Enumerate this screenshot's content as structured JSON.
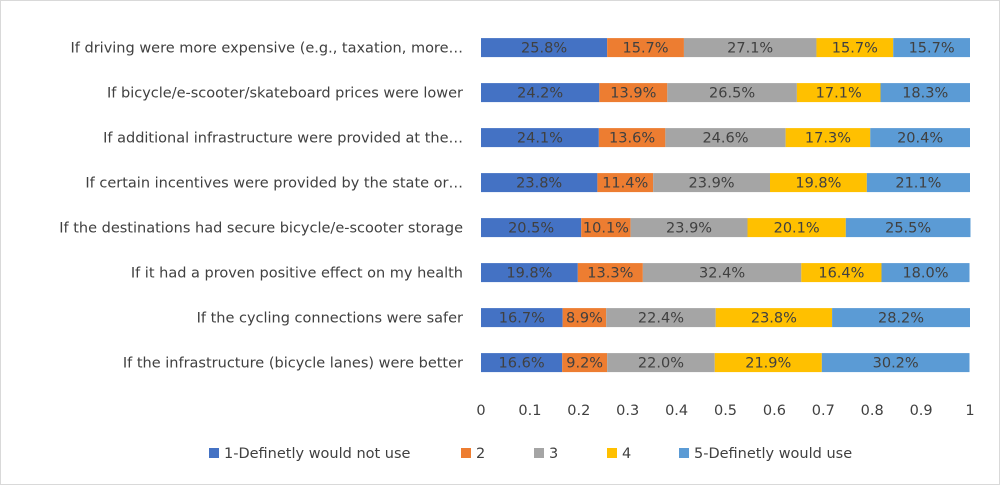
{
  "chart_data": {
    "type": "bar",
    "orientation": "horizontal",
    "stacked": true,
    "categories": [
      "If driving were more expensive (e.g., taxation, more…",
      "If bicycle/e-scooter/skateboard prices were lower",
      "If additional infrastructure were provided at the…",
      "If certain incentives were provided by the state or…",
      "If the destinations had secure bicycle/e-scooter storage",
      "If it had a proven positive effect on my health",
      "If the cycling connections were safer",
      "If the infrastructure (bicycle lanes) were better"
    ],
    "series": [
      {
        "name": "1-Definetly would not use",
        "color": "#4472C4",
        "values": [
          0.258,
          0.242,
          0.241,
          0.238,
          0.205,
          0.198,
          0.167,
          0.166
        ]
      },
      {
        "name": "2",
        "color": "#ED7D31",
        "values": [
          0.157,
          0.139,
          0.136,
          0.114,
          0.101,
          0.133,
          0.089,
          0.092
        ]
      },
      {
        "name": "3",
        "color": "#A5A5A5",
        "values": [
          0.271,
          0.265,
          0.246,
          0.239,
          0.239,
          0.324,
          0.224,
          0.22
        ]
      },
      {
        "name": "4",
        "color": "#FFC000",
        "values": [
          0.157,
          0.171,
          0.173,
          0.198,
          0.201,
          0.164,
          0.238,
          0.219
        ]
      },
      {
        "name": "5-Definetly would use",
        "color": "#5B9BD5",
        "values": [
          0.157,
          0.183,
          0.204,
          0.211,
          0.255,
          0.18,
          0.282,
          0.302
        ]
      }
    ],
    "data_labels": [
      [
        "25.8%",
        "15.7%",
        "27.1%",
        "15.7%",
        "15.7%"
      ],
      [
        "24.2%",
        "13.9%",
        "26.5%",
        "17.1%",
        "18.3%"
      ],
      [
        "24.1%",
        "13.6%",
        "24.6%",
        "17.3%",
        "20.4%"
      ],
      [
        "23.8%",
        "11.4%",
        "23.9%",
        "19.8%",
        "21.1%"
      ],
      [
        "20.5%",
        "10.1%",
        "23.9%",
        "20.1%",
        "25.5%"
      ],
      [
        "19.8%",
        "13.3%",
        "32.4%",
        "16.4%",
        "18.0%"
      ],
      [
        "16.7%",
        "8.9%",
        "22.4%",
        "23.8%",
        "28.2%"
      ],
      [
        "16.6%",
        "9.2%",
        "22.0%",
        "21.9%",
        "30.2%"
      ]
    ],
    "x_ticks": [
      "0",
      "0.1",
      "0.2",
      "0.3",
      "0.4",
      "0.5",
      "0.6",
      "0.7",
      "0.8",
      "0.9",
      "1"
    ],
    "xlim": [
      0,
      1
    ],
    "grid": false,
    "legend_position": "bottom"
  }
}
